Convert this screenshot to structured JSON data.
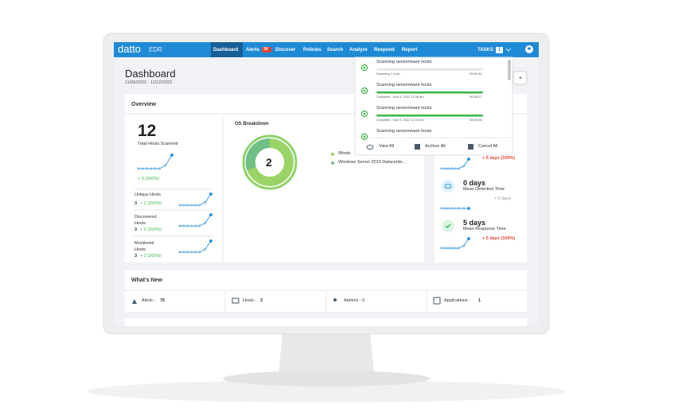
{
  "nav": {
    "brand": "datto",
    "product": "EDR",
    "items": [
      "Dashboard",
      "Alerts",
      "Discover",
      "Policies",
      "Search",
      "Analyze",
      "Respond",
      "Report"
    ],
    "alerts_badge": "34",
    "tasks": "TASKS",
    "tasks_badge": "1"
  },
  "header": {
    "title": "Dashboard",
    "date_range": "11/06/2022 - 11/12/2022"
  },
  "overview": {
    "title": "Overview",
    "total": {
      "value": "12",
      "label": "Total Hosts Scanned",
      "change": "+ 9 (300%)"
    },
    "stats": [
      {
        "label": "Unique Hosts",
        "value": "3",
        "change": "+ 2 (200%)"
      },
      {
        "label": "Discovered Hosts",
        "value": "3",
        "change": "+ 2 (200%)"
      },
      {
        "label": "Monitored Hosts",
        "value": "3",
        "change": "+ 2 (200%)"
      }
    ],
    "os": {
      "title": "OS Breakdown",
      "count": "2",
      "legend": [
        "Windo",
        "Windows Server 2019 Datacente..."
      ]
    },
    "response": {
      "top_change": "+ 5 days (100%)",
      "metrics": [
        {
          "value": "0 days",
          "label": "Mean Detection Time",
          "change": "+ 0 days"
        },
        {
          "value": "5 days",
          "label": "Mean Response Time",
          "change": "+ 5 days (100%)"
        }
      ]
    }
  },
  "tasks": {
    "items": [
      {
        "title": "Scanning ransomware hosts",
        "status": "Scanning 1 host...",
        "time": "00:00:44"
      },
      {
        "title": "Scanning ransomware hosts",
        "status": "Complete - Nov 9, 2022 11:48 am",
        "time": "00:06:27"
      },
      {
        "title": "Scanning ransomware hosts",
        "status": "Complete - Nov 9, 2022 11:24 am",
        "time": "00:06:38"
      },
      {
        "title": "Scanning ransomware hosts"
      }
    ],
    "actions": [
      "View All",
      "Archive All",
      "Cancel All"
    ]
  },
  "whats_new": {
    "title": "What's New",
    "items": [
      {
        "label": "Alerts - ",
        "count": "76"
      },
      {
        "label": "Hosts - ",
        "count": "2"
      },
      {
        "label": "Admins - 0"
      },
      {
        "label": "Applications - ",
        "count": "1"
      }
    ]
  }
}
